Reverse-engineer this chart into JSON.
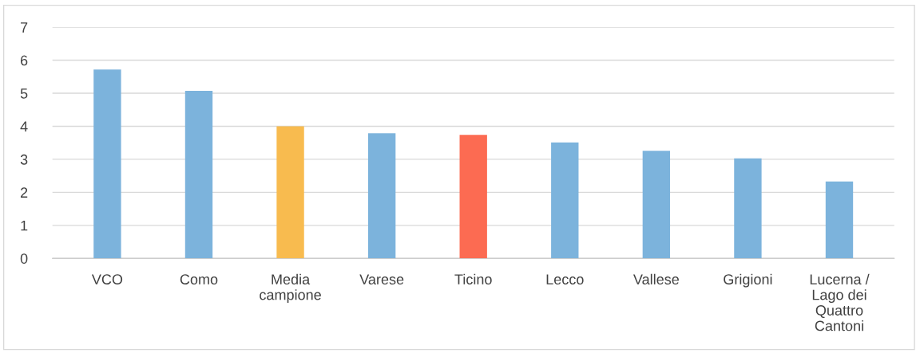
{
  "chart_data": {
    "type": "bar",
    "categories": [
      "VCO",
      "Como",
      "Media\ncampione",
      "Varese",
      "Ticino",
      "Lecco",
      "Vallese",
      "Grigioni",
      "Lucerna /\nLago dei\nQuattro\nCantoni"
    ],
    "values": [
      5.72,
      5.07,
      4.0,
      3.79,
      3.74,
      3.51,
      3.26,
      3.03,
      2.33
    ],
    "colors": [
      "#7cb3dc",
      "#7cb3dc",
      "#f8bb4f",
      "#7cb3dc",
      "#fc6b52",
      "#7cb3dc",
      "#7cb3dc",
      "#7cb3dc",
      "#7cb3dc"
    ],
    "ylim": [
      0,
      7
    ],
    "yticks": [
      0,
      1,
      2,
      3,
      4,
      5,
      6,
      7
    ],
    "grid": "y"
  }
}
